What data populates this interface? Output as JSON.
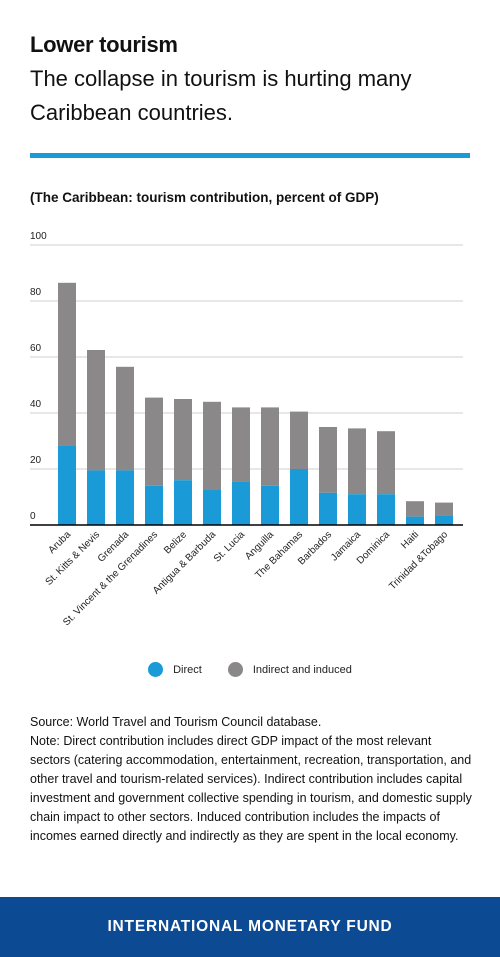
{
  "header": {
    "title": "Lower tourism",
    "subtitle": "The collapse in tourism is hurting many Caribbean countries."
  },
  "chart_label": "(The Caribbean: tourism contribution, percent of GDP)",
  "colors": {
    "accent_rule": "#1a9ad6",
    "direct": "#1a9ad6",
    "indirect": "#8a8888",
    "footer_bg": "#0c4a93"
  },
  "chart_data": {
    "type": "bar",
    "stacked": true,
    "categories": [
      "Aruba",
      "St. Kitts & Nevis",
      "Grenada",
      "St. Vincent & the Grenadines",
      "Belize",
      "Antigua & Barbuda",
      "St. Lucia",
      "Anguilla",
      "The Bahamas",
      "Barbados",
      "Jamaica",
      "Dominica",
      "Haiti",
      "Trinidad &Tobago"
    ],
    "series": [
      {
        "name": "Direct",
        "values": [
          28.5,
          19.5,
          19.5,
          14,
          16,
          12.5,
          15.5,
          14,
          20,
          11.5,
          11,
          11,
          3,
          3.5
        ]
      },
      {
        "name": "Indirect and induced",
        "values": [
          58,
          43,
          37,
          31.5,
          29,
          31.5,
          26.5,
          28,
          20.5,
          23.5,
          23.5,
          22.5,
          5.5,
          4.5
        ]
      }
    ],
    "yticks": [
      0,
      20,
      40,
      60,
      80,
      100
    ],
    "ylim": [
      0,
      100
    ],
    "grid": true,
    "legend_position": "bottom-center"
  },
  "legend": {
    "direct_label": "Direct",
    "indirect_label": "Indirect and induced"
  },
  "notes": {
    "source": "Source: World Travel and Tourism Council database.",
    "note": "Note: Direct contribution includes direct GDP impact of the most relevant sectors (catering accommodation, entertainment, recreation, transportation, and other travel and tourism-related services). Indirect contribution includes capital investment and government collective spending in tourism, and domestic supply chain impact to other sectors. Induced contribution includes the impacts of incomes earned directly and indirectly as they are spent in the local economy."
  },
  "footer": {
    "text": "INTERNATIONAL MONETARY FUND"
  }
}
